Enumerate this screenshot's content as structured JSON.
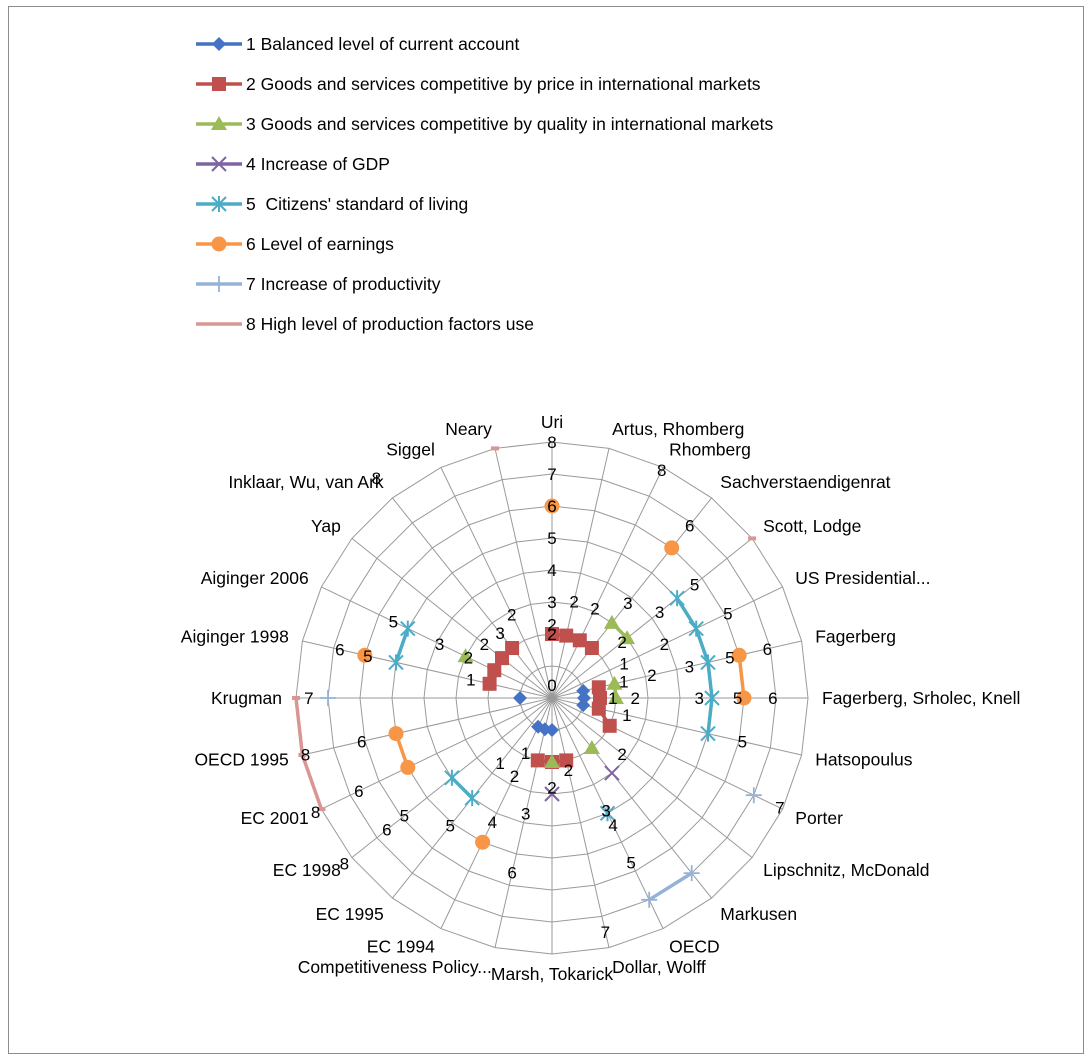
{
  "chart_data": {
    "type": "radar",
    "rmax": 8,
    "grid": true,
    "radial_tick_labels": [
      "0",
      "1",
      "2",
      "3",
      "4",
      "5",
      "6",
      "7",
      "8"
    ],
    "categories": [
      "Uri",
      "Artus, Rhomberg",
      "Rhomberg",
      "Sachverstaendigenrat",
      "Scott, Lodge",
      "US Presidential...",
      "Fagerberg",
      "Fagerberg, Srholec, Knell",
      "Hatsopoulus",
      "Porter",
      "Lipschnitz, McDonald",
      "Markusen",
      "OECD",
      "Dollar, Wolff",
      "Marsh, Tokarick",
      "Competitiveness Policy...",
      "EC 1994",
      "EC 1995",
      "EC 1998",
      "EC 2001",
      "OECD 1995",
      "Krugman",
      "Aiginger 1998",
      "Aiginger 2006",
      "Yap",
      "Inklaar, Wu, van Ark",
      "Siggel",
      "Neary"
    ],
    "legend_position": "top",
    "series": [
      {
        "name": "1 Balanced level of current account",
        "color": "#4472C4",
        "marker": "diamond",
        "values": [
          null,
          null,
          null,
          null,
          null,
          null,
          1,
          1,
          1,
          null,
          null,
          null,
          null,
          null,
          1,
          1,
          1,
          null,
          null,
          null,
          null,
          1,
          null,
          null,
          null,
          null,
          null,
          null
        ]
      },
      {
        "name": "2 Goods and services competitive by price in international markets",
        "color": "#C0504D",
        "marker": "square",
        "values": [
          2,
          2,
          2,
          2,
          null,
          null,
          1.5,
          1.5,
          1.5,
          2,
          null,
          null,
          null,
          2,
          2,
          2,
          null,
          null,
          null,
          null,
          null,
          null,
          2,
          2,
          2,
          2,
          null,
          null
        ]
      },
      {
        "name": "3 Goods and services competitive by quality in international markets",
        "color": "#9BBB59",
        "marker": "triangle",
        "values": [
          null,
          null,
          null,
          3,
          3,
          null,
          2,
          2,
          null,
          null,
          null,
          2,
          null,
          null,
          2,
          null,
          null,
          null,
          null,
          null,
          null,
          null,
          null,
          3,
          null,
          null,
          null,
          null
        ]
      },
      {
        "name": "4 Increase of GDP",
        "color": "#8064A2",
        "marker": "x",
        "values": [
          null,
          null,
          null,
          null,
          null,
          null,
          null,
          null,
          null,
          null,
          null,
          3,
          null,
          null,
          3,
          null,
          null,
          null,
          null,
          null,
          null,
          null,
          null,
          null,
          null,
          null,
          null,
          null
        ]
      },
      {
        "name": "5  Citizens' standard of living",
        "color": "#4BACC6",
        "marker": "star",
        "values": [
          null,
          null,
          null,
          null,
          5,
          5,
          5,
          5,
          5,
          null,
          null,
          null,
          4,
          null,
          null,
          null,
          null,
          4,
          4,
          null,
          null,
          null,
          5,
          5,
          null,
          null,
          null,
          null
        ]
      },
      {
        "name": "6 Level of earnings",
        "color": "#F79646",
        "marker": "circle",
        "values": [
          6,
          null,
          null,
          6,
          null,
          null,
          6,
          6,
          null,
          null,
          null,
          null,
          null,
          null,
          null,
          null,
          5,
          null,
          null,
          5,
          5,
          null,
          6,
          null,
          null,
          null,
          null,
          null
        ]
      },
      {
        "name": "7 Increase of productivity",
        "color": "#95B3D7",
        "marker": "plus",
        "values": [
          null,
          null,
          null,
          null,
          null,
          null,
          null,
          null,
          null,
          7,
          null,
          7,
          7,
          null,
          null,
          null,
          null,
          null,
          null,
          null,
          null,
          7,
          null,
          null,
          null,
          null,
          null,
          null
        ]
      },
      {
        "name": "8 High level of production factors use",
        "color": "#D99694",
        "marker": "dash",
        "values": [
          null,
          null,
          null,
          null,
          8,
          null,
          null,
          null,
          null,
          null,
          null,
          null,
          null,
          null,
          null,
          null,
          null,
          null,
          null,
          8,
          8,
          8,
          null,
          null,
          null,
          null,
          null,
          8
        ]
      }
    ],
    "data_labels": [
      {
        "c": 0,
        "r": 8,
        "text": "8"
      },
      {
        "c": 0,
        "r": 7,
        "text": "7"
      },
      {
        "c": 0,
        "r": 6,
        "text": "6"
      },
      {
        "c": 0,
        "r": 5,
        "text": "5"
      },
      {
        "c": 0,
        "r": 4,
        "text": "4"
      },
      {
        "c": 0,
        "r": 3,
        "text": "3"
      },
      {
        "c": 0,
        "r": 2,
        "text": "2"
      },
      {
        "c": 0,
        "r": 2.3,
        "text": "2"
      },
      {
        "c": 0,
        "r": 0.4,
        "text": "0"
      },
      {
        "c": 1,
        "r": 3.1,
        "text": "2"
      },
      {
        "c": 2,
        "r": 3.1,
        "text": "2"
      },
      {
        "c": 2,
        "r": 7.9,
        "text": "8"
      },
      {
        "c": 3,
        "r": 3.8,
        "text": "3"
      },
      {
        "c": 3,
        "r": 6.9,
        "text": "6"
      },
      {
        "c": 4,
        "r": 5.7,
        "text": "5"
      },
      {
        "c": 4,
        "r": 2.8,
        "text": "2"
      },
      {
        "c": 4,
        "r": 4.3,
        "text": "3"
      },
      {
        "c": 5,
        "r": 6.1,
        "text": "5"
      },
      {
        "c": 5,
        "r": 2.5,
        "text": "1"
      },
      {
        "c": 5,
        "r": 3.9,
        "text": "2"
      },
      {
        "c": 6,
        "r": 6.9,
        "text": "6"
      },
      {
        "c": 6,
        "r": 5.7,
        "text": "5"
      },
      {
        "c": 6,
        "r": 4.4,
        "text": "3"
      },
      {
        "c": 6,
        "r": 2.3,
        "text": "1"
      },
      {
        "c": 6,
        "r": 3.2,
        "text": "2"
      },
      {
        "c": 7,
        "r": 6.9,
        "text": "6"
      },
      {
        "c": 7,
        "r": 5.8,
        "text": "5"
      },
      {
        "c": 7,
        "r": 4.6,
        "text": "3"
      },
      {
        "c": 7,
        "r": 1.9,
        "text": "1"
      },
      {
        "c": 7,
        "r": 2.6,
        "text": "2"
      },
      {
        "c": 8,
        "r": 6.1,
        "text": "5"
      },
      {
        "c": 8,
        "r": 2.4,
        "text": "1"
      },
      {
        "c": 9,
        "r": 7.9,
        "text": "7"
      },
      {
        "c": 10,
        "r": 2.8,
        "text": "2"
      },
      {
        "c": 12,
        "r": 5.7,
        "text": "5"
      },
      {
        "c": 12,
        "r": 4.4,
        "text": "4"
      },
      {
        "c": 12,
        "r": 3.9,
        "text": "3"
      },
      {
        "c": 13,
        "r": 2.3,
        "text": "2"
      },
      {
        "c": 13,
        "r": 7.5,
        "text": "7"
      },
      {
        "c": 14,
        "r": 2.8,
        "text": "2"
      },
      {
        "c": 15,
        "r": 3.7,
        "text": "3"
      },
      {
        "c": 15,
        "r": 5.6,
        "text": "6"
      },
      {
        "c": 16,
        "r": 1.9,
        "text": "1"
      },
      {
        "c": 16,
        "r": 4.3,
        "text": "4"
      },
      {
        "c": 16,
        "r": 2.7,
        "text": "2"
      },
      {
        "c": 17,
        "r": 5.1,
        "text": "5"
      },
      {
        "c": 17,
        "r": 2.6,
        "text": "1"
      },
      {
        "c": 18,
        "r": 5.9,
        "text": "5"
      },
      {
        "c": 18,
        "r": 6.6,
        "text": "6"
      },
      {
        "c": 18,
        "r": 8.3,
        "text": "8"
      },
      {
        "c": 19,
        "r": 6.7,
        "text": "6"
      },
      {
        "c": 19,
        "r": 8.2,
        "text": "8"
      },
      {
        "c": 20,
        "r": 7.9,
        "text": "8"
      },
      {
        "c": 20,
        "r": 6.1,
        "text": "6"
      },
      {
        "c": 21,
        "r": 7.6,
        "text": "7"
      },
      {
        "c": 22,
        "r": 6.8,
        "text": "6"
      },
      {
        "c": 22,
        "r": 5.9,
        "text": "5"
      },
      {
        "c": 22,
        "r": 2.6,
        "text": "1"
      },
      {
        "c": 23,
        "r": 5.5,
        "text": "5"
      },
      {
        "c": 23,
        "r": 3.9,
        "text": "3"
      },
      {
        "c": 23,
        "r": 2.9,
        "text": "2"
      },
      {
        "c": 24,
        "r": 2.7,
        "text": "2"
      },
      {
        "c": 25,
        "r": 2.6,
        "text": "3"
      },
      {
        "c": 26,
        "r": 2.9,
        "text": "2"
      },
      {
        "c": 25,
        "r": 8.8,
        "text": "8"
      }
    ]
  }
}
